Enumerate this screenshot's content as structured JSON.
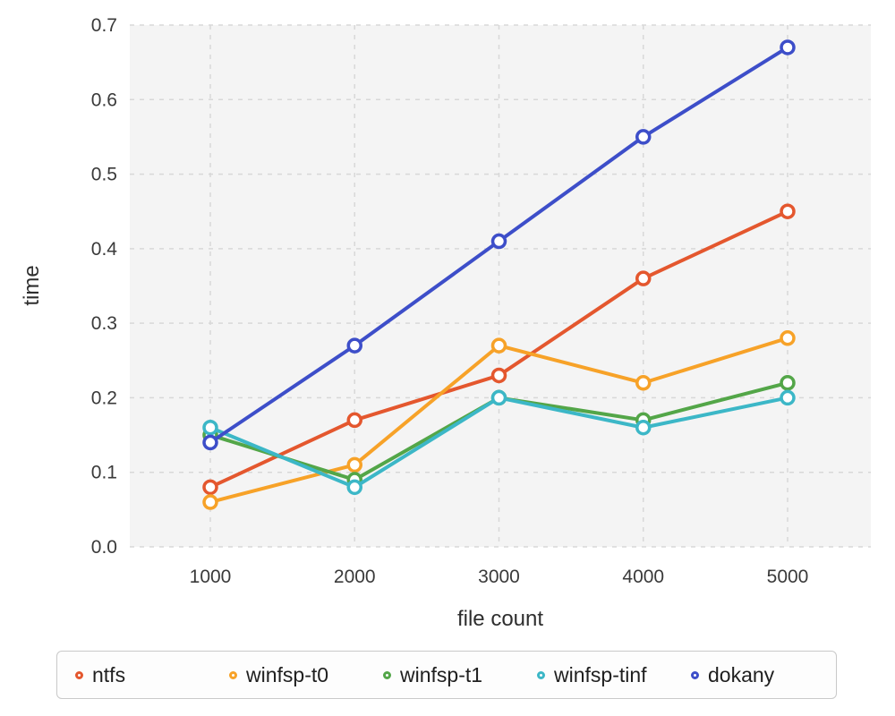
{
  "chart_data": {
    "type": "line",
    "title": "",
    "xlabel": "file count",
    "ylabel": "time",
    "x": [
      1000,
      2000,
      3000,
      4000,
      5000
    ],
    "xtick_labels": [
      "1000",
      "2000",
      "3000",
      "4000",
      "5000"
    ],
    "ytick_labels": [
      "0.0",
      "0.1",
      "0.2",
      "0.3",
      "0.4",
      "0.5",
      "0.6",
      "0.7"
    ],
    "xlim": [
      1000,
      5000
    ],
    "ylim": [
      0,
      0.7
    ],
    "grid": true,
    "grid_style": "dashed",
    "legend_position": "bottom",
    "marker": "open-circle",
    "series": [
      {
        "name": "ntfs",
        "color": "#e4572e",
        "values": [
          0.08,
          0.17,
          0.23,
          0.36,
          0.45
        ]
      },
      {
        "name": "winfsp-t0",
        "color": "#f7a228",
        "values": [
          0.06,
          0.11,
          0.27,
          0.22,
          0.28
        ]
      },
      {
        "name": "winfsp-t1",
        "color": "#53a648",
        "values": [
          0.15,
          0.09,
          0.2,
          0.17,
          0.22
        ]
      },
      {
        "name": "winfsp-tinf",
        "color": "#3cb7c7",
        "values": [
          0.16,
          0.08,
          0.2,
          0.16,
          0.2
        ]
      },
      {
        "name": "dokany",
        "color": "#3d4ec9",
        "values": [
          0.14,
          0.27,
          0.41,
          0.55,
          0.67
        ]
      }
    ],
    "plot_background": "#f4f4f4",
    "gridline_color": "#d8d8d8"
  }
}
